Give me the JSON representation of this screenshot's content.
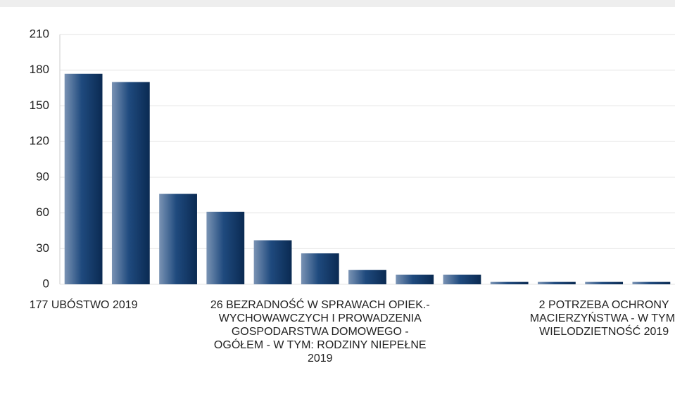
{
  "chart_data": {
    "type": "bar",
    "categories": [
      "177 UBÓSTWO 2019",
      null,
      null,
      null,
      null,
      "26 BEZRADNOŚĆ W SPRAWACH OPIEK.-WYCHOWAWCZYCH I PROWADZENIA GOSPODARSTWA DOMOWEGO - OGÓŁEM - W TYM: RODZINY NIEPEŁNE 2019",
      null,
      null,
      null,
      null,
      null,
      "2 POTRZEBA OCHRONY MACIERZYŃSTWA - W TYM: WIELODZIETNOŚĆ 2019",
      null
    ],
    "values": [
      177,
      170,
      76,
      61,
      37,
      26,
      12,
      8,
      8,
      2,
      2,
      2,
      2
    ],
    "color": "#0e3462",
    "ylim": [
      0,
      210
    ],
    "yticks": [
      0,
      30,
      60,
      90,
      120,
      150,
      180,
      210
    ],
    "grid": true
  }
}
